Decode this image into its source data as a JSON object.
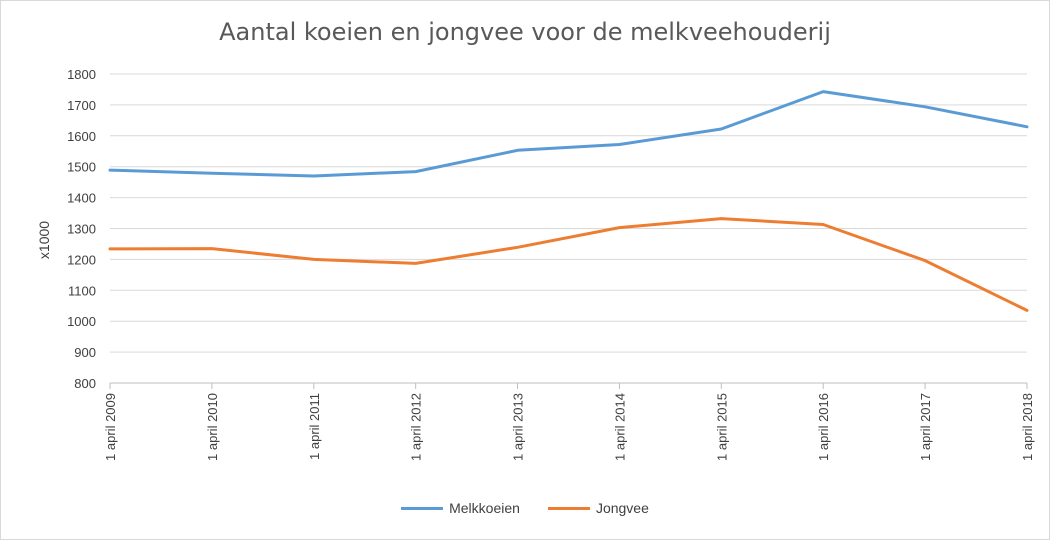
{
  "chart_data": {
    "type": "line",
    "title": "Aantal koeien en jongvee voor de melkveehouderij",
    "ylabel": "x1000",
    "xlabel": "",
    "ylim": [
      800,
      1800
    ],
    "yticks": [
      800,
      900,
      1000,
      1100,
      1200,
      1300,
      1400,
      1500,
      1600,
      1700,
      1800
    ],
    "grid": true,
    "legend_position": "bottom",
    "categories": [
      "1 april 2009",
      "1 april 2010",
      "1 april 2011",
      "1 april 2012",
      "1 april 2013",
      "1 april 2014",
      "1 april 2015",
      "1 april 2016",
      "1 april 2017",
      "1 april 2018"
    ],
    "series": [
      {
        "name": "Melkkoeien",
        "color": "#5b9bd5",
        "values": [
          1489,
          1479,
          1470,
          1484,
          1553,
          1572,
          1622,
          1743,
          1694,
          1629
        ]
      },
      {
        "name": "Jongvee",
        "color": "#ed7d31",
        "values": [
          1234,
          1235,
          1200,
          1187,
          1239,
          1303,
          1332,
          1313,
          1196,
          1035
        ]
      }
    ]
  }
}
